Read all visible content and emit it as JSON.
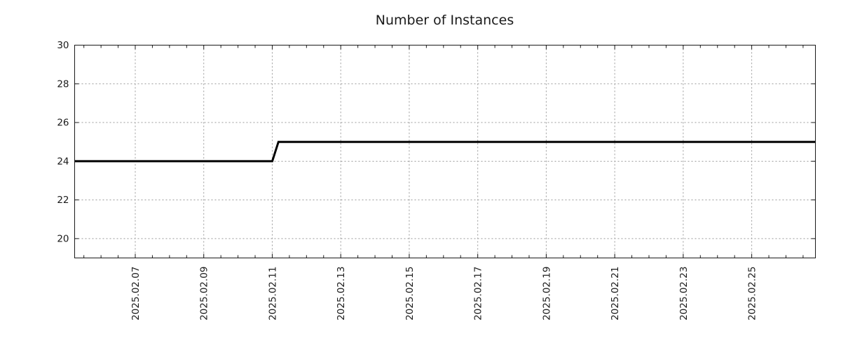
{
  "chart_data": {
    "type": "line",
    "title": "Number of Instances",
    "xlabel": "",
    "ylabel": "",
    "x_unit": "days since 2025-02-05 00:00",
    "xlim": [
      0.23,
      21.86
    ],
    "ylim": [
      19,
      30
    ],
    "yticks": [
      {
        "pos": 20,
        "label": "20"
      },
      {
        "pos": 22,
        "label": "22"
      },
      {
        "pos": 24,
        "label": "24"
      },
      {
        "pos": 26,
        "label": "26"
      },
      {
        "pos": 28,
        "label": "28"
      },
      {
        "pos": 30,
        "label": "30"
      }
    ],
    "xticks": [
      {
        "pos": 2,
        "label": "2025.02.07"
      },
      {
        "pos": 4,
        "label": "2025.02.09"
      },
      {
        "pos": 6,
        "label": "2025.02.11"
      },
      {
        "pos": 8,
        "label": "2025.02.13"
      },
      {
        "pos": 10,
        "label": "2025.02.15"
      },
      {
        "pos": 12,
        "label": "2025.02.17"
      },
      {
        "pos": 14,
        "label": "2025.02.19"
      },
      {
        "pos": 16,
        "label": "2025.02.21"
      },
      {
        "pos": 18,
        "label": "2025.02.23"
      },
      {
        "pos": 20,
        "label": "2025.02.25"
      }
    ],
    "minor_tick_interval": 0.5,
    "grid": true,
    "legend": "none",
    "series": [
      {
        "name": "instances",
        "color": "#000000",
        "line_width": 3,
        "points": [
          [
            0.23,
            24
          ],
          [
            6.0,
            24
          ],
          [
            6.18,
            25
          ],
          [
            21.86,
            25
          ]
        ],
        "note": "constant 24 until 2025-02-11 00:00, steps up to 25, constant after"
      }
    ],
    "colors": {
      "background": "#ffffff",
      "axis": "#1a1a1a",
      "grid": "#999999",
      "text": "#1a1a1a",
      "line": "#000000"
    }
  }
}
